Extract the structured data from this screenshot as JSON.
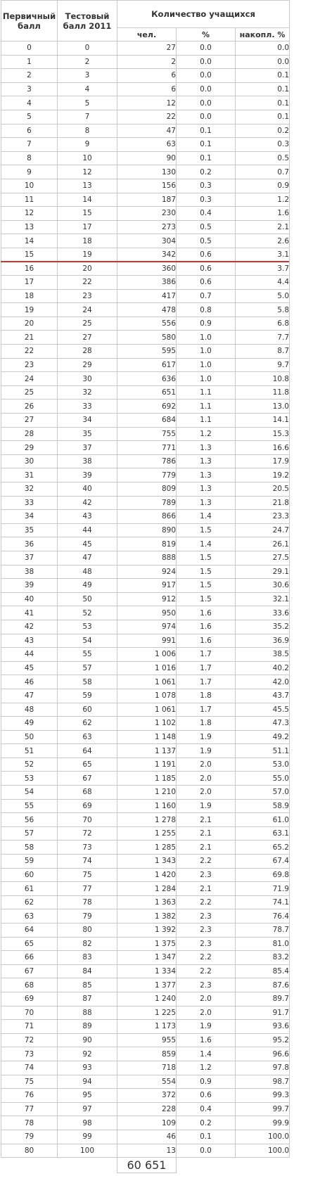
{
  "headers": {
    "primary": "Первичный балл",
    "test": "Тестовый балл 2011",
    "count_group": "Количество учащихся",
    "people": "чел.",
    "percent": "%",
    "cumulative": "накопл. %"
  },
  "rows": [
    [
      "0",
      "0",
      "27",
      "0.0",
      "0.0"
    ],
    [
      "1",
      "2",
      "2",
      "0.0",
      "0.0"
    ],
    [
      "2",
      "3",
      "6",
      "0.0",
      "0.1"
    ],
    [
      "3",
      "4",
      "6",
      "0.0",
      "0.1"
    ],
    [
      "4",
      "5",
      "12",
      "0.0",
      "0.1"
    ],
    [
      "5",
      "7",
      "22",
      "0.0",
      "0.1"
    ],
    [
      "6",
      "8",
      "47",
      "0.1",
      "0.2"
    ],
    [
      "7",
      "9",
      "63",
      "0.1",
      "0.3"
    ],
    [
      "8",
      "10",
      "90",
      "0.1",
      "0.5"
    ],
    [
      "9",
      "12",
      "130",
      "0.2",
      "0.7"
    ],
    [
      "10",
      "13",
      "156",
      "0.3",
      "0.9"
    ],
    [
      "11",
      "14",
      "187",
      "0.3",
      "1.2"
    ],
    [
      "12",
      "15",
      "230",
      "0.4",
      "1.6"
    ],
    [
      "13",
      "17",
      "273",
      "0.5",
      "2.1"
    ],
    [
      "14",
      "18",
      "304",
      "0.5",
      "2.6"
    ],
    [
      "15",
      "19",
      "342",
      "0.6",
      "3.1"
    ],
    [
      "16",
      "20",
      "360",
      "0.6",
      "3.7"
    ],
    [
      "17",
      "22",
      "386",
      "0.6",
      "4.4"
    ],
    [
      "18",
      "23",
      "417",
      "0.7",
      "5.0"
    ],
    [
      "19",
      "24",
      "478",
      "0.8",
      "5.8"
    ],
    [
      "20",
      "25",
      "556",
      "0.9",
      "6.8"
    ],
    [
      "21",
      "27",
      "580",
      "1.0",
      "7.7"
    ],
    [
      "22",
      "28",
      "595",
      "1.0",
      "8.7"
    ],
    [
      "23",
      "29",
      "617",
      "1.0",
      "9.7"
    ],
    [
      "24",
      "30",
      "636",
      "1.0",
      "10.8"
    ],
    [
      "25",
      "32",
      "651",
      "1.1",
      "11.8"
    ],
    [
      "26",
      "33",
      "692",
      "1.1",
      "13.0"
    ],
    [
      "27",
      "34",
      "684",
      "1.1",
      "14.1"
    ],
    [
      "28",
      "35",
      "755",
      "1.2",
      "15.3"
    ],
    [
      "29",
      "37",
      "771",
      "1.3",
      "16.6"
    ],
    [
      "30",
      "38",
      "786",
      "1.3",
      "17.9"
    ],
    [
      "31",
      "39",
      "779",
      "1.3",
      "19.2"
    ],
    [
      "32",
      "40",
      "809",
      "1.3",
      "20.5"
    ],
    [
      "33",
      "42",
      "789",
      "1.3",
      "21.8"
    ],
    [
      "34",
      "43",
      "866",
      "1.4",
      "23.3"
    ],
    [
      "35",
      "44",
      "890",
      "1.5",
      "24.7"
    ],
    [
      "36",
      "45",
      "819",
      "1.4",
      "26.1"
    ],
    [
      "37",
      "47",
      "888",
      "1.5",
      "27.5"
    ],
    [
      "38",
      "48",
      "924",
      "1.5",
      "29.1"
    ],
    [
      "39",
      "49",
      "917",
      "1.5",
      "30.6"
    ],
    [
      "40",
      "50",
      "912",
      "1.5",
      "32.1"
    ],
    [
      "41",
      "52",
      "950",
      "1.6",
      "33.6"
    ],
    [
      "42",
      "53",
      "974",
      "1.6",
      "35.2"
    ],
    [
      "43",
      "54",
      "991",
      "1.6",
      "36.9"
    ],
    [
      "44",
      "55",
      "1 006",
      "1.7",
      "38.5"
    ],
    [
      "45",
      "57",
      "1 016",
      "1.7",
      "40.2"
    ],
    [
      "46",
      "58",
      "1 061",
      "1.7",
      "42.0"
    ],
    [
      "47",
      "59",
      "1 078",
      "1.8",
      "43.7"
    ],
    [
      "48",
      "60",
      "1 061",
      "1.7",
      "45.5"
    ],
    [
      "49",
      "62",
      "1 102",
      "1.8",
      "47.3"
    ],
    [
      "50",
      "63",
      "1 148",
      "1.9",
      "49.2"
    ],
    [
      "51",
      "64",
      "1 137",
      "1.9",
      "51.1"
    ],
    [
      "52",
      "65",
      "1 191",
      "2.0",
      "53.0"
    ],
    [
      "53",
      "67",
      "1 185",
      "2.0",
      "55.0"
    ],
    [
      "54",
      "68",
      "1 210",
      "2.0",
      "57.0"
    ],
    [
      "55",
      "69",
      "1 160",
      "1.9",
      "58.9"
    ],
    [
      "56",
      "70",
      "1 278",
      "2.1",
      "61.0"
    ],
    [
      "57",
      "72",
      "1 255",
      "2.1",
      "63.1"
    ],
    [
      "58",
      "73",
      "1 285",
      "2.1",
      "65.2"
    ],
    [
      "59",
      "74",
      "1 343",
      "2.2",
      "67.4"
    ],
    [
      "60",
      "75",
      "1 420",
      "2.3",
      "69.8"
    ],
    [
      "61",
      "77",
      "1 284",
      "2.1",
      "71.9"
    ],
    [
      "62",
      "78",
      "1 363",
      "2.2",
      "74.1"
    ],
    [
      "63",
      "79",
      "1 382",
      "2.3",
      "76.4"
    ],
    [
      "64",
      "80",
      "1 392",
      "2.3",
      "78.7"
    ],
    [
      "65",
      "82",
      "1 375",
      "2.3",
      "81.0"
    ],
    [
      "66",
      "83",
      "1 347",
      "2.2",
      "83.2"
    ],
    [
      "67",
      "84",
      "1 334",
      "2.2",
      "85.4"
    ],
    [
      "68",
      "85",
      "1 377",
      "2.3",
      "87.6"
    ],
    [
      "69",
      "87",
      "1 240",
      "2.0",
      "89.7"
    ],
    [
      "70",
      "88",
      "1 225",
      "2.0",
      "91.7"
    ],
    [
      "71",
      "89",
      "1 173",
      "1.9",
      "93.6"
    ],
    [
      "72",
      "90",
      "955",
      "1.6",
      "95.2"
    ],
    [
      "73",
      "92",
      "859",
      "1.4",
      "96.6"
    ],
    [
      "74",
      "93",
      "718",
      "1.2",
      "97.8"
    ],
    [
      "75",
      "94",
      "554",
      "0.9",
      "98.7"
    ],
    [
      "76",
      "95",
      "372",
      "0.6",
      "99.3"
    ],
    [
      "77",
      "97",
      "228",
      "0.4",
      "99.7"
    ],
    [
      "78",
      "98",
      "109",
      "0.2",
      "99.9"
    ],
    [
      "79",
      "99",
      "46",
      "0.1",
      "100.0"
    ],
    [
      "80",
      "100",
      "13",
      "0.0",
      "100.0"
    ]
  ],
  "total": "60 651",
  "threshold_after_primary": "15",
  "colors": {
    "threshold_line": "#d22f2f",
    "border": "#c8c8c8",
    "text": "#333333"
  }
}
